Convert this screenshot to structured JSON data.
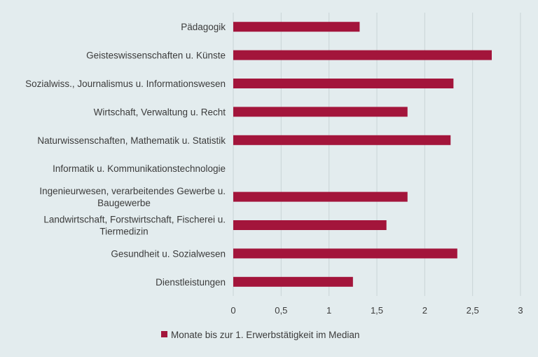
{
  "chart_data": {
    "type": "bar",
    "orientation": "horizontal",
    "categories": [
      [
        "Pädagogik"
      ],
      [
        "Geisteswissenschaften u. Künste"
      ],
      [
        "Sozialwiss., Journalismus u. Informationswesen"
      ],
      [
        "Wirtschaft, Verwaltung u. Recht"
      ],
      [
        "Naturwissenschaften, Mathematik u. Statistik"
      ],
      [
        "Informatik u. Kommunikationstechnologie"
      ],
      [
        "Ingenieurwesen, verarbeitendes Gewerbe u.",
        "Baugewerbe"
      ],
      [
        "Landwirtschaft, Forstwirtschaft, Fischerei u.",
        "Tiermedizin"
      ],
      [
        "Gesundheit u. Sozialwesen"
      ],
      [
        "Dienstleistungen"
      ]
    ],
    "series": [
      {
        "name": "Monate bis zur 1. Erwerbstätigkeit im Median",
        "values": [
          1.32,
          2.7,
          2.3,
          1.82,
          2.27,
          null,
          1.82,
          1.6,
          2.34,
          1.25
        ],
        "color": "#a3153b"
      }
    ],
    "xlim": [
      0,
      3
    ],
    "ticks": [
      "0",
      "0,5",
      "1",
      "1,5",
      "2",
      "2,5",
      "3"
    ],
    "tick_values": [
      0,
      0.5,
      1,
      1.5,
      2,
      2.5,
      3
    ],
    "grid": "vertical",
    "legend_position": "bottom",
    "colors": {
      "background": "#e3ecee",
      "grid": "#c9d3d6",
      "text": "#3b3b3b"
    }
  }
}
